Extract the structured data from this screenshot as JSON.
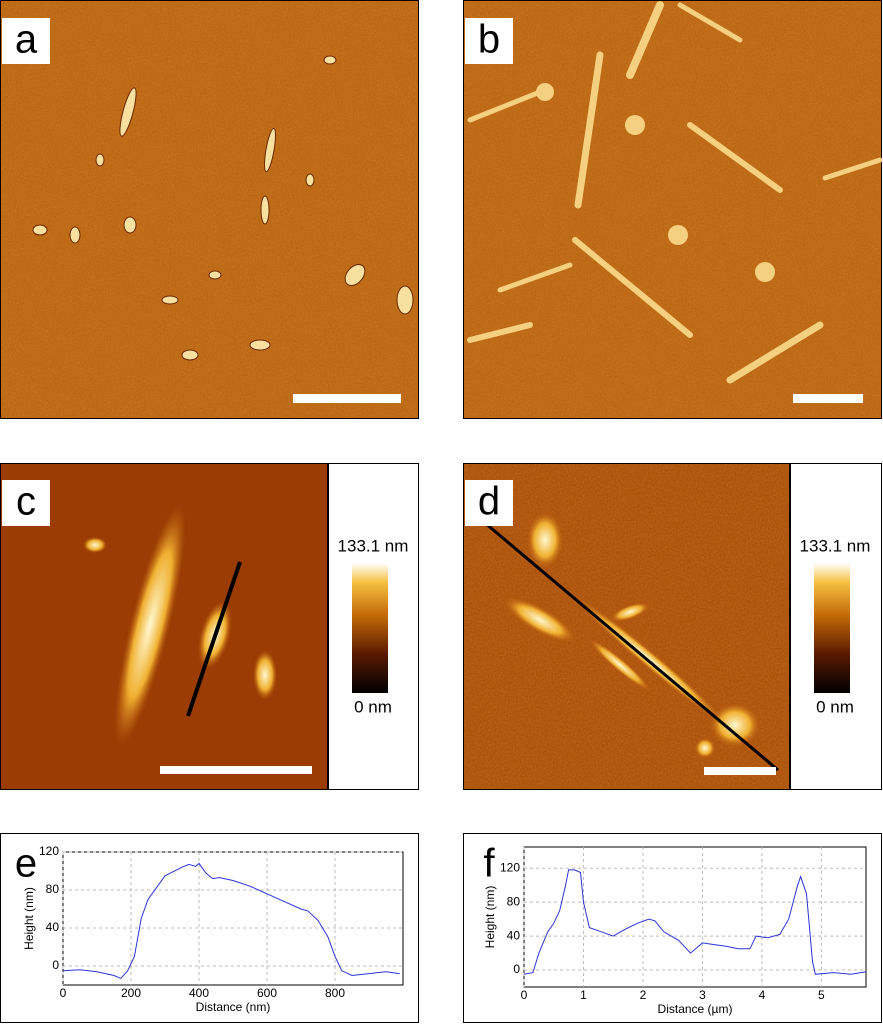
{
  "panel_labels": [
    "a",
    "b",
    "c",
    "d",
    "e",
    "f"
  ],
  "colorbars": [
    {
      "max_label": "133.1 nm",
      "min_label": "0 nm"
    },
    {
      "max_label": "133.1 nm",
      "min_label": "0 nm"
    }
  ],
  "chart_data": [
    {
      "type": "line",
      "x_label": "Distance (nm)",
      "y_label": "Height (nm)",
      "color": "#2a35d8",
      "grid": true,
      "xlim": [
        0,
        1000
      ],
      "xticks": [
        0,
        200,
        400,
        600,
        800
      ],
      "ylim": [
        -20,
        120
      ],
      "yticks": [
        0,
        40,
        80,
        120
      ],
      "x": [
        0,
        50,
        100,
        150,
        170,
        190,
        210,
        230,
        250,
        280,
        300,
        350,
        370,
        390,
        400,
        420,
        440,
        460,
        500,
        550,
        600,
        650,
        700,
        720,
        750,
        780,
        800,
        820,
        850,
        900,
        950,
        990
      ],
      "values": [
        -5,
        -4,
        -6,
        -10,
        -13,
        -5,
        10,
        50,
        70,
        85,
        95,
        104,
        107,
        105,
        108,
        98,
        92,
        93,
        90,
        84,
        76,
        68,
        60,
        58,
        48,
        30,
        10,
        -5,
        -10,
        -8,
        -6,
        -8
      ]
    },
    {
      "type": "line",
      "x_label": "Distance (µm)",
      "y_label": "Height (nm)",
      "color": "#2a35d8",
      "grid": true,
      "xlim": [
        0,
        5.75
      ],
      "xticks": [
        0,
        1,
        2,
        3,
        4,
        5
      ],
      "ylim": [
        -20,
        145
      ],
      "yticks": [
        0,
        40,
        80,
        120
      ],
      "x": [
        0,
        0.15,
        0.25,
        0.4,
        0.5,
        0.6,
        0.7,
        0.75,
        0.85,
        0.95,
        1.0,
        1.1,
        1.3,
        1.5,
        1.7,
        1.9,
        2.1,
        2.2,
        2.35,
        2.6,
        2.8,
        3.0,
        3.2,
        3.4,
        3.6,
        3.8,
        3.9,
        4.1,
        4.3,
        4.45,
        4.6,
        4.65,
        4.75,
        4.85,
        4.9,
        5.2,
        5.5,
        5.75
      ],
      "values": [
        -5,
        -3,
        20,
        45,
        55,
        70,
        100,
        118,
        118,
        115,
        80,
        50,
        45,
        40,
        48,
        55,
        60,
        58,
        45,
        35,
        20,
        32,
        30,
        28,
        25,
        25,
        40,
        38,
        42,
        60,
        100,
        110,
        90,
        10,
        -5,
        -3,
        -5,
        -2
      ]
    }
  ]
}
